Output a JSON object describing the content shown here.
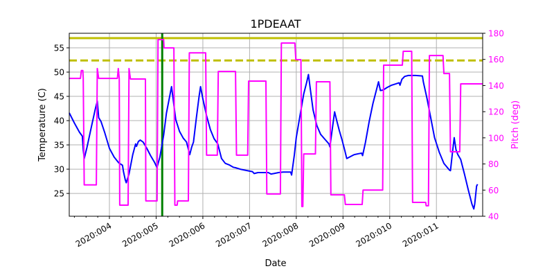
{
  "chart_data": {
    "type": "line",
    "title": "1PDEAAT",
    "xlabel": "Date",
    "ylabel": "Temperature (C)",
    "y2label": "Pitch (deg)",
    "x_tick_labels": [
      "2020:004",
      "2020:005",
      "2020:006",
      "2020:007",
      "2020:008",
      "2020:009",
      "2020:010",
      "2020:011"
    ],
    "x_ticks_day": [
      4,
      5,
      6,
      7,
      8,
      9,
      10,
      11
    ],
    "xlim_day": [
      3.14,
      11.99
    ],
    "ylim": [
      20.3,
      58.0
    ],
    "y_ticks": [
      25,
      30,
      35,
      40,
      45,
      50,
      55
    ],
    "y2lim": [
      40,
      180
    ],
    "y2_ticks": [
      40,
      60,
      80,
      100,
      120,
      140,
      160,
      180
    ],
    "grid": true,
    "legend": null,
    "colors": {
      "temperature": "#0000ff",
      "pitch": "#ff00ff",
      "limit_solid": "#bfbf00",
      "limit_dashed": "#bfbf00",
      "now_marker": "#008000",
      "pitch_axis": "#ff00ff",
      "grid": "#b0b0b0"
    },
    "reference_lines": [
      {
        "name": "planning-limit",
        "axis": "left",
        "value": 57.0,
        "style": "solid",
        "color": "#bfbf00"
      },
      {
        "name": "caution-limit",
        "axis": "left",
        "value": 52.4,
        "style": "dashed",
        "color": "#bfbf00"
      },
      {
        "name": "current-time",
        "axis": "x",
        "value_day": 5.13,
        "style": "solid",
        "color": "#008000"
      }
    ],
    "series": [
      {
        "name": "Temperature",
        "axis": "left",
        "color": "#0000ff",
        "points": [
          [
            3.14,
            41.6
          ],
          [
            3.25,
            39.5
          ],
          [
            3.36,
            37.6
          ],
          [
            3.42,
            36.8
          ],
          [
            3.44,
            34.0
          ],
          [
            3.46,
            32.2
          ],
          [
            3.52,
            34.5
          ],
          [
            3.62,
            39.0
          ],
          [
            3.7,
            42.5
          ],
          [
            3.74,
            44.0
          ],
          [
            3.77,
            40.6
          ],
          [
            3.82,
            39.8
          ],
          [
            3.9,
            37.5
          ],
          [
            4.0,
            34.3
          ],
          [
            4.1,
            32.5
          ],
          [
            4.2,
            31.3
          ],
          [
            4.28,
            30.8
          ],
          [
            4.3,
            29.5
          ],
          [
            4.34,
            27.8
          ],
          [
            4.36,
            27.2
          ],
          [
            4.42,
            29.0
          ],
          [
            4.5,
            33.0
          ],
          [
            4.56,
            35.2
          ],
          [
            4.58,
            34.7
          ],
          [
            4.62,
            35.7
          ],
          [
            4.66,
            36.0
          ],
          [
            4.72,
            35.6
          ],
          [
            4.8,
            34.3
          ],
          [
            4.88,
            32.8
          ],
          [
            4.96,
            31.5
          ],
          [
            5.0,
            30.7
          ],
          [
            5.02,
            30.4
          ],
          [
            5.08,
            32.5
          ],
          [
            5.16,
            37.0
          ],
          [
            5.22,
            41.5
          ],
          [
            5.3,
            45.5
          ],
          [
            5.33,
            47.0
          ],
          [
            5.37,
            44.0
          ],
          [
            5.42,
            40.2
          ],
          [
            5.5,
            37.8
          ],
          [
            5.58,
            36.4
          ],
          [
            5.65,
            35.6
          ],
          [
            5.68,
            34.5
          ],
          [
            5.72,
            33.0
          ],
          [
            5.76,
            34.5
          ],
          [
            5.8,
            35.6
          ],
          [
            5.86,
            40.5
          ],
          [
            5.92,
            45.0
          ],
          [
            5.95,
            47.0
          ],
          [
            6.0,
            44.5
          ],
          [
            6.08,
            41.0
          ],
          [
            6.16,
            38.2
          ],
          [
            6.24,
            36.3
          ],
          [
            6.32,
            35.2
          ],
          [
            6.4,
            32.2
          ],
          [
            6.48,
            31.2
          ],
          [
            6.56,
            30.9
          ],
          [
            6.65,
            30.4
          ],
          [
            6.7,
            30.3
          ],
          [
            6.8,
            30.0
          ],
          [
            6.9,
            29.8
          ],
          [
            7.0,
            29.6
          ],
          [
            7.06,
            29.5
          ],
          [
            7.1,
            29.1
          ],
          [
            7.18,
            29.3
          ],
          [
            7.3,
            29.3
          ],
          [
            7.4,
            29.3
          ],
          [
            7.46,
            29.0
          ],
          [
            7.52,
            29.1
          ],
          [
            7.62,
            29.3
          ],
          [
            7.72,
            29.4
          ],
          [
            7.82,
            29.4
          ],
          [
            7.88,
            29.4
          ],
          [
            7.9,
            28.8
          ],
          [
            7.96,
            33.0
          ],
          [
            8.0,
            36.5
          ],
          [
            8.08,
            41.0
          ],
          [
            8.16,
            45.5
          ],
          [
            8.22,
            47.8
          ],
          [
            8.26,
            49.5
          ],
          [
            8.3,
            46.5
          ],
          [
            8.36,
            42.2
          ],
          [
            8.44,
            39.0
          ],
          [
            8.52,
            37.2
          ],
          [
            8.6,
            36.3
          ],
          [
            8.7,
            35.2
          ],
          [
            8.72,
            34.6
          ],
          [
            8.78,
            39.0
          ],
          [
            8.82,
            41.8
          ],
          [
            8.86,
            40.2
          ],
          [
            8.92,
            38.0
          ],
          [
            8.98,
            36.0
          ],
          [
            9.04,
            33.8
          ],
          [
            9.08,
            32.2
          ],
          [
            9.14,
            32.5
          ],
          [
            9.24,
            33.0
          ],
          [
            9.34,
            33.2
          ],
          [
            9.4,
            33.3
          ],
          [
            9.42,
            32.8
          ],
          [
            9.48,
            35.5
          ],
          [
            9.56,
            39.8
          ],
          [
            9.64,
            43.5
          ],
          [
            9.72,
            46.5
          ],
          [
            9.76,
            48.0
          ],
          [
            9.8,
            46.2
          ],
          [
            9.86,
            46.3
          ],
          [
            9.94,
            46.8
          ],
          [
            10.04,
            47.3
          ],
          [
            10.14,
            47.6
          ],
          [
            10.2,
            47.8
          ],
          [
            10.22,
            47.3
          ],
          [
            10.26,
            48.5
          ],
          [
            10.32,
            49.1
          ],
          [
            10.4,
            49.3
          ],
          [
            10.55,
            49.3
          ],
          [
            10.7,
            49.2
          ],
          [
            10.72,
            48.0
          ],
          [
            10.8,
            44.5
          ],
          [
            10.88,
            40.5
          ],
          [
            10.96,
            36.5
          ],
          [
            11.06,
            33.5
          ],
          [
            11.16,
            31.2
          ],
          [
            11.28,
            29.8
          ],
          [
            11.3,
            29.7
          ],
          [
            11.34,
            33.2
          ],
          [
            11.38,
            36.5
          ],
          [
            11.42,
            34.0
          ],
          [
            11.46,
            33.0
          ],
          [
            11.52,
            32.0
          ],
          [
            11.6,
            29.0
          ],
          [
            11.68,
            25.8
          ],
          [
            11.76,
            22.8
          ],
          [
            11.8,
            21.8
          ],
          [
            11.82,
            22.8
          ],
          [
            11.86,
            26.5
          ],
          [
            11.88,
            26.9
          ]
        ]
      },
      {
        "name": "Pitch",
        "axis": "right",
        "color": "#ff00ff",
        "points": [
          [
            3.14,
            145.5
          ],
          [
            3.38,
            145.5
          ],
          [
            3.4,
            151.5
          ],
          [
            3.43,
            151.5
          ],
          [
            3.44,
            145.5
          ],
          [
            3.46,
            64.0
          ],
          [
            3.72,
            64.0
          ],
          [
            3.74,
            153.0
          ],
          [
            3.77,
            145.5
          ],
          [
            4.17,
            145.5
          ],
          [
            4.19,
            153.0
          ],
          [
            4.21,
            145.5
          ],
          [
            4.22,
            48.5
          ],
          [
            4.4,
            48.5
          ],
          [
            4.42,
            153.0
          ],
          [
            4.45,
            145.0
          ],
          [
            4.77,
            145.0
          ],
          [
            4.78,
            51.7
          ],
          [
            5.02,
            51.7
          ],
          [
            5.04,
            175.2
          ],
          [
            5.16,
            175.2
          ],
          [
            5.17,
            168.8
          ],
          [
            5.38,
            168.8
          ],
          [
            5.4,
            48.5
          ],
          [
            5.45,
            48.5
          ],
          [
            5.46,
            51.7
          ],
          [
            5.69,
            51.7
          ],
          [
            5.71,
            165.0
          ],
          [
            6.06,
            165.0
          ],
          [
            6.08,
            86.7
          ],
          [
            6.31,
            86.7
          ],
          [
            6.33,
            150.8
          ],
          [
            6.7,
            150.8
          ],
          [
            6.72,
            86.7
          ],
          [
            6.96,
            86.7
          ],
          [
            6.98,
            143.4
          ],
          [
            7.35,
            143.4
          ],
          [
            7.37,
            57.0
          ],
          [
            7.66,
            57.0
          ],
          [
            7.68,
            172.5
          ],
          [
            7.97,
            172.5
          ],
          [
            7.99,
            159.8
          ],
          [
            8.1,
            159.8
          ],
          [
            8.12,
            47.4
          ],
          [
            8.14,
            47.4
          ],
          [
            8.16,
            87.7
          ],
          [
            8.41,
            87.7
          ],
          [
            8.43,
            142.9
          ],
          [
            8.72,
            142.9
          ],
          [
            8.74,
            56.4
          ],
          [
            9.03,
            56.4
          ],
          [
            9.05,
            49.0
          ],
          [
            9.41,
            49.0
          ],
          [
            9.43,
            60.0
          ],
          [
            9.85,
            60.0
          ],
          [
            9.87,
            155.6
          ],
          [
            10.27,
            155.6
          ],
          [
            10.29,
            166.2
          ],
          [
            10.47,
            166.2
          ],
          [
            10.49,
            50.6
          ],
          [
            10.77,
            50.6
          ],
          [
            10.78,
            48.0
          ],
          [
            10.83,
            48.0
          ],
          [
            10.85,
            163.0
          ],
          [
            11.14,
            163.0
          ],
          [
            11.16,
            149.2
          ],
          [
            11.28,
            149.2
          ],
          [
            11.3,
            89.3
          ],
          [
            11.5,
            89.3
          ],
          [
            11.52,
            141.3
          ],
          [
            11.99,
            141.3
          ]
        ]
      }
    ]
  }
}
